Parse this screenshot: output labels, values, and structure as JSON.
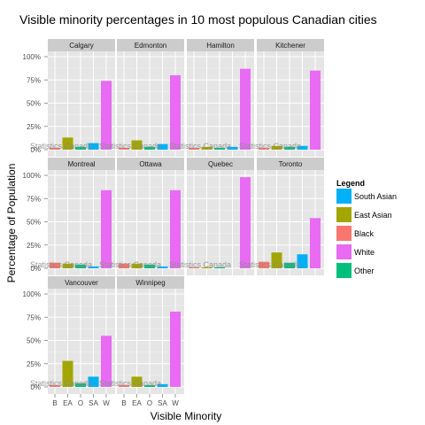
{
  "chart_data": {
    "type": "bar",
    "title": "Visible minority percentages in 10 most populous Canadian cities",
    "xlabel": "Visible Minority",
    "ylabel": "Percentage of Population",
    "categories": [
      "B",
      "EA",
      "O",
      "SA",
      "W"
    ],
    "category_names": [
      "Black",
      "East Asian",
      "Other",
      "South Asian",
      "White"
    ],
    "y_ticks": [
      "0%",
      "25%",
      "50%",
      "75%",
      "100%"
    ],
    "ylim": [
      0,
      1
    ],
    "watermark": "Statistics Canada",
    "colors": {
      "Black": "#F8766D",
      "East Asian": "#A3A500",
      "Other": "#00BF7D",
      "South Asian": "#00B0F6",
      "White": "#E76BF3"
    },
    "legend": {
      "title": "Legend",
      "position": "right",
      "entries": [
        "South Asian",
        "East Asian",
        "Black",
        "White",
        "Other"
      ]
    },
    "panels": [
      {
        "city": "Calgary",
        "values": [
          0.02,
          0.13,
          0.03,
          0.07,
          0.74
        ]
      },
      {
        "city": "Edmonton",
        "values": [
          0.02,
          0.1,
          0.03,
          0.06,
          0.8
        ]
      },
      {
        "city": "Hamilton",
        "values": [
          0.02,
          0.03,
          0.02,
          0.03,
          0.87
        ]
      },
      {
        "city": "Kitchener",
        "values": [
          0.02,
          0.04,
          0.03,
          0.04,
          0.85
        ]
      },
      {
        "city": "Montreal",
        "values": [
          0.06,
          0.05,
          0.04,
          0.02,
          0.84
        ]
      },
      {
        "city": "Ottawa",
        "values": [
          0.05,
          0.05,
          0.04,
          0.02,
          0.84
        ]
      },
      {
        "city": "Quebec",
        "values": [
          0.01,
          0.01,
          0.01,
          0.0,
          0.98
        ]
      },
      {
        "city": "Toronto",
        "values": [
          0.07,
          0.17,
          0.06,
          0.15,
          0.54
        ]
      },
      {
        "city": "Vancouver",
        "values": [
          0.02,
          0.28,
          0.04,
          0.11,
          0.55
        ]
      },
      {
        "city": "Winnipeg",
        "values": [
          0.02,
          0.11,
          0.02,
          0.03,
          0.81
        ]
      }
    ]
  }
}
